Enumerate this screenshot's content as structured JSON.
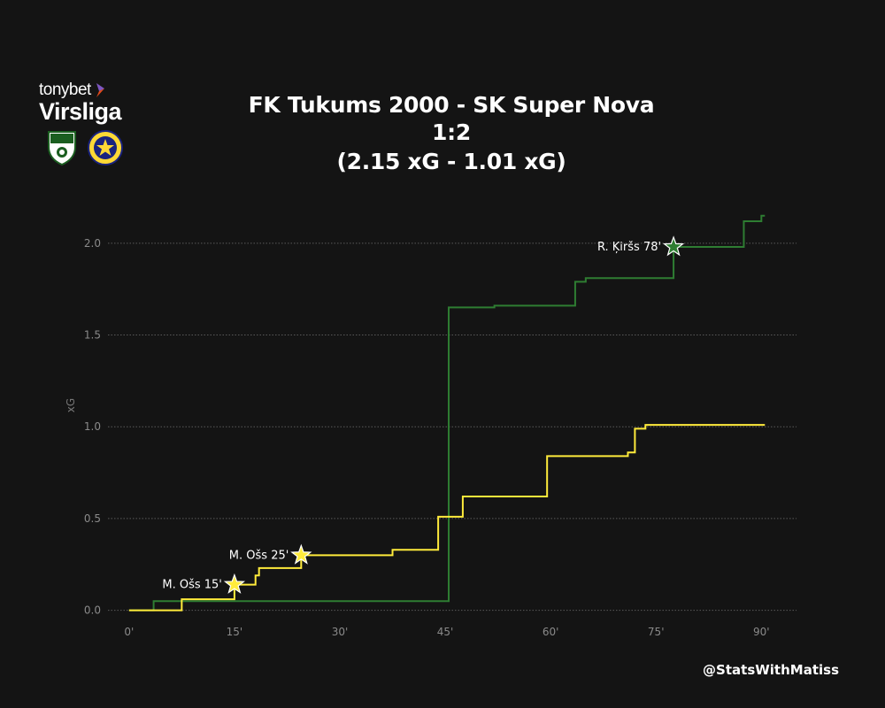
{
  "brand": {
    "top": "tonybet",
    "main": "Virsliga"
  },
  "credit": "@StatsWithMatiss",
  "colors": {
    "home": "#2e7d32",
    "away": "#ffeb3b",
    "background": "#141414"
  },
  "chart_data": {
    "type": "line",
    "step": true,
    "title": [
      "FK Tukums 2000 - SK Super Nova",
      "1:2",
      "(2.15 xG - 1.01 xG)"
    ],
    "xlabel": "",
    "ylabel": "xG",
    "xlim": [
      -3,
      95
    ],
    "ylim": [
      -0.05,
      2.25
    ],
    "xticks": [
      0,
      15,
      30,
      45,
      60,
      75,
      90
    ],
    "xtick_labels": [
      "0'",
      "15'",
      "30'",
      "45'",
      "60'",
      "75'",
      "90'"
    ],
    "yticks": [
      0,
      0.5,
      1,
      1.5,
      2
    ],
    "ytick_labels": [
      "0.0",
      "0.5",
      "1.0",
      "1.5",
      "2.0"
    ],
    "grid": "horizontal-dotted",
    "series": [
      {
        "team": "home",
        "color": "#2e7d32",
        "x": [
          0,
          3.5,
          45.5,
          52,
          63.5,
          65,
          77.5,
          87.5,
          90,
          90.5
        ],
        "y": [
          0,
          0.05,
          1.65,
          1.66,
          1.79,
          1.81,
          1.98,
          2.12,
          2.15,
          2.15
        ],
        "goals": [
          {
            "x": 77.5,
            "y": 1.98,
            "label": "R. Ķiršs 78'"
          }
        ]
      },
      {
        "team": "away",
        "color": "#ffeb3b",
        "x": [
          0,
          7.5,
          15,
          18,
          18.5,
          24.5,
          37.5,
          44,
          47.5,
          59.5,
          71,
          72,
          73.5,
          90.5
        ],
        "y": [
          0,
          0.06,
          0.14,
          0.19,
          0.23,
          0.3,
          0.33,
          0.51,
          0.62,
          0.84,
          0.86,
          0.99,
          1.01,
          1.01
        ],
        "goals": [
          {
            "x": 15,
            "y": 0.14,
            "label": "M. Ošs 15'"
          },
          {
            "x": 24.5,
            "y": 0.3,
            "label": "M. Ošs 25'"
          }
        ]
      }
    ]
  }
}
